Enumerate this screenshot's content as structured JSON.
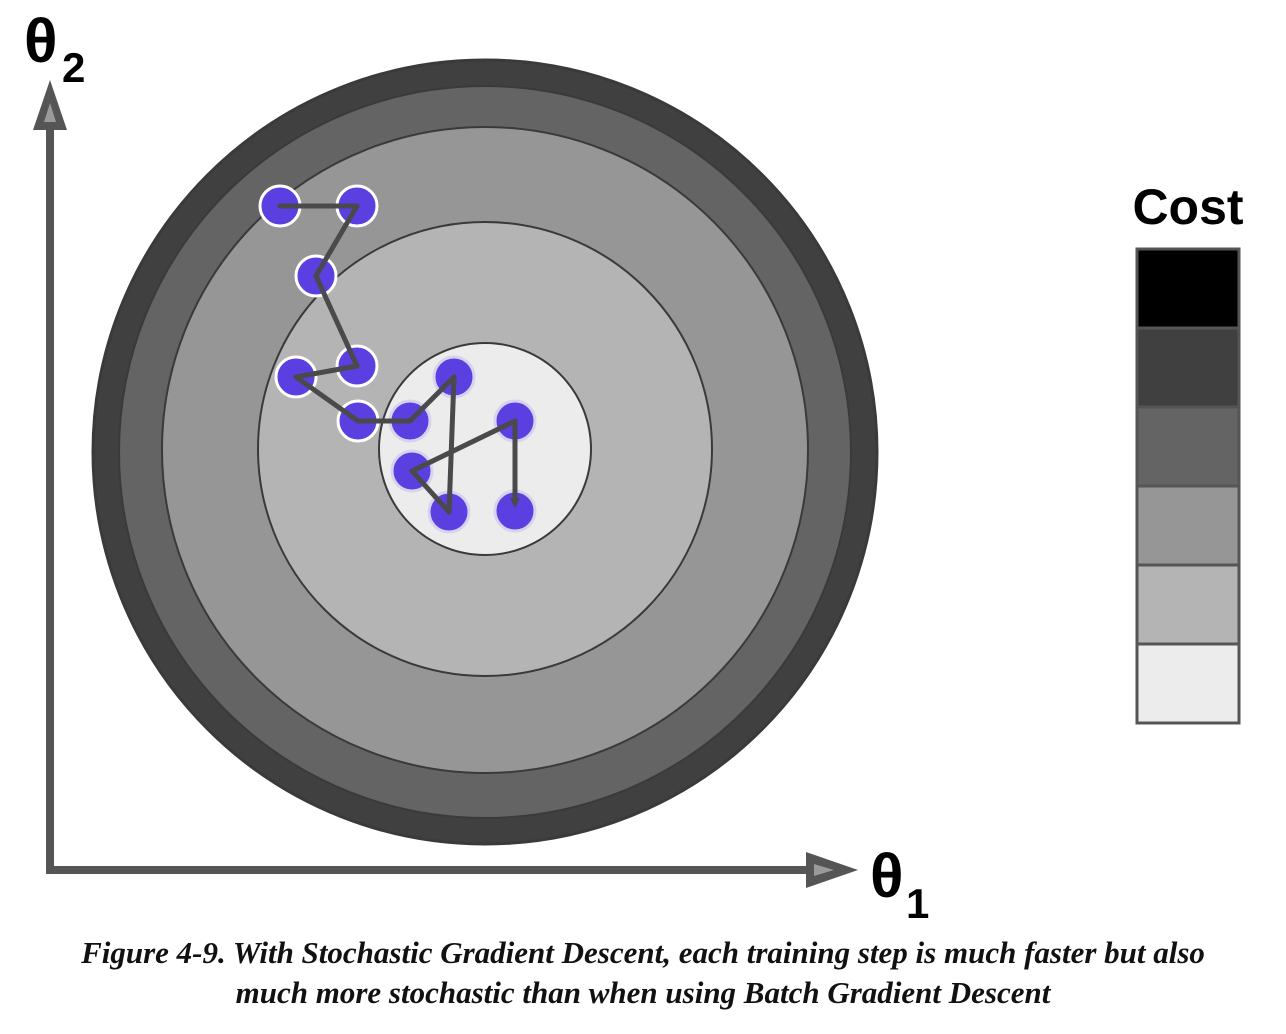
{
  "axes": {
    "y_label": "θ",
    "y_subscript": "2",
    "x_label": "θ",
    "x_subscript": "1"
  },
  "legend": {
    "title": "Cost",
    "swatches": [
      "#000000",
      "#404040",
      "#646464",
      "#969696",
      "#b4b4b4",
      "#ececec"
    ]
  },
  "contours": {
    "colors": [
      "#404040",
      "#646464",
      "#969696",
      "#b4b4b4",
      "#ececec"
    ],
    "stroke": "#3a3a3a"
  },
  "path": {
    "point_color": "#5b3fe0",
    "line_color": "#4a4a4a",
    "points": [
      {
        "t1": 280,
        "t2": 206
      },
      {
        "t1": 357,
        "t2": 206
      },
      {
        "t1": 316,
        "t2": 276
      },
      {
        "t1": 357,
        "t2": 366
      },
      {
        "t1": 296,
        "t2": 377
      },
      {
        "t1": 358,
        "t2": 421
      },
      {
        "t1": 410,
        "t2": 421
      },
      {
        "t1": 454,
        "t2": 377
      },
      {
        "t1": 449,
        "t2": 512
      },
      {
        "t1": 412,
        "t2": 471
      },
      {
        "t1": 515,
        "t2": 421
      },
      {
        "t1": 515,
        "t2": 511
      }
    ]
  },
  "caption": {
    "line1": "Figure 4-9. With Stochastic Gradient Descent, each training step is much faster but also",
    "line2": "much more stochastic than when using Batch Gradient Descent"
  }
}
